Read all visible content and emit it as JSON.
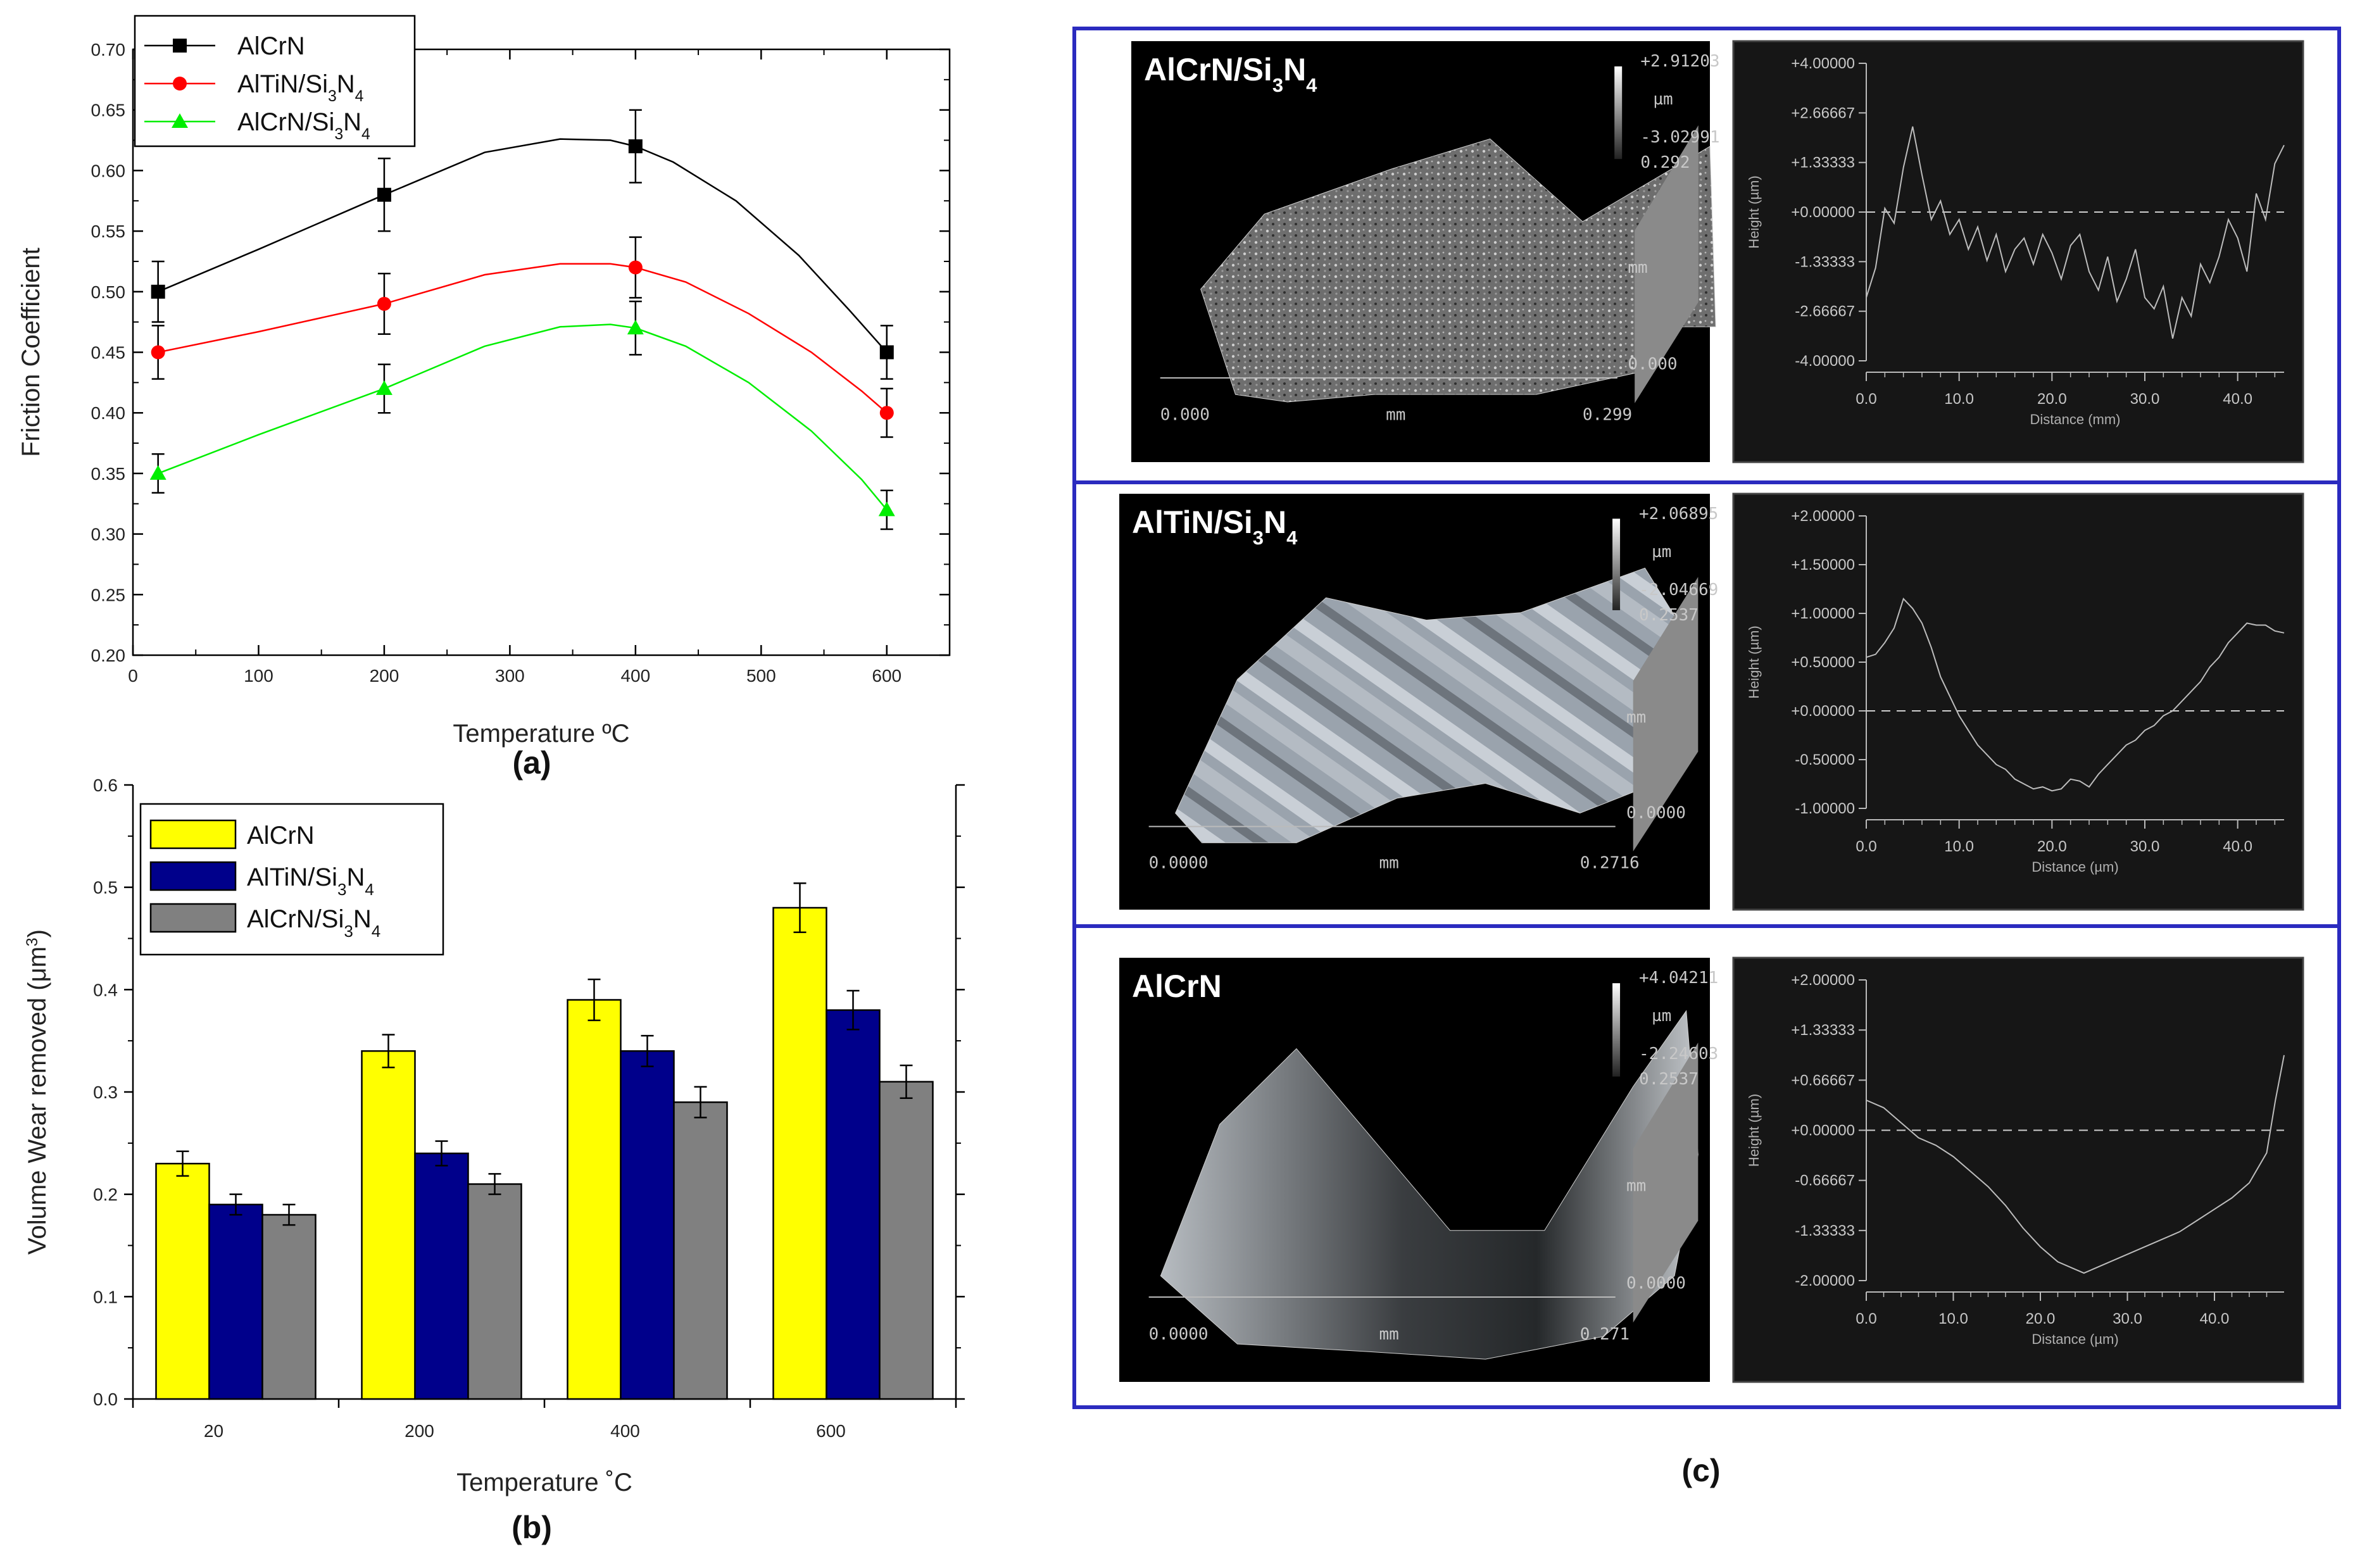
{
  "figure_labels": {
    "a": "(a)",
    "b": "(b)",
    "c": "(c)"
  },
  "colors": {
    "alcrn": "#000000",
    "altin_si3n4": "#ff0000",
    "alcrn_si3n4": "#00ee00",
    "bar_alcrn": "#ffff00",
    "bar_altin_si3n4": "#00008b",
    "bar_alcrn_si3n4": "#808080",
    "frame_blue": "#2b2bbf"
  },
  "chart_data": [
    {
      "id": "a",
      "type": "line",
      "xlabel": "Temperature ºC",
      "ylabel": "Friction Coefficient",
      "xlim": [
        0,
        650
      ],
      "ylim": [
        0.2,
        0.7
      ],
      "xticks": [
        0,
        100,
        200,
        300,
        400,
        500,
        600
      ],
      "yticks": [
        "0.20",
        "0.25",
        "0.30",
        "0.35",
        "0.40",
        "0.45",
        "0.50",
        "0.55",
        "0.60",
        "0.65",
        "0.70"
      ],
      "x": [
        20,
        200,
        400,
        600
      ],
      "legend_position": "top-left",
      "series": [
        {
          "name": "AlCrN",
          "name_parts": [
            "AlCrN",
            "",
            "",
            "",
            ""
          ],
          "color_key": "alcrn",
          "marker": "square",
          "values": [
            0.5,
            0.58,
            0.62,
            0.45
          ],
          "errors": [
            0.025,
            0.03,
            0.03,
            0.022
          ],
          "curve": [
            [
              20,
              0.5
            ],
            [
              100,
              0.535
            ],
            [
              200,
              0.58
            ],
            [
              280,
              0.615
            ],
            [
              340,
              0.626
            ],
            [
              380,
              0.625
            ],
            [
              400,
              0.62
            ],
            [
              430,
              0.607
            ],
            [
              480,
              0.575
            ],
            [
              530,
              0.53
            ],
            [
              570,
              0.485
            ],
            [
              600,
              0.45
            ]
          ]
        },
        {
          "name": "AlTiN/Si3N4",
          "name_parts": [
            "AlTiN/Si",
            "3",
            "N",
            "4",
            ""
          ],
          "color_key": "altin_si3n4",
          "marker": "circle",
          "values": [
            0.45,
            0.49,
            0.52,
            0.4
          ],
          "errors": [
            0.022,
            0.025,
            0.025,
            0.02
          ],
          "curve": [
            [
              20,
              0.45
            ],
            [
              100,
              0.467
            ],
            [
              200,
              0.49
            ],
            [
              280,
              0.514
            ],
            [
              340,
              0.523
            ],
            [
              380,
              0.523
            ],
            [
              400,
              0.52
            ],
            [
              440,
              0.508
            ],
            [
              490,
              0.482
            ],
            [
              540,
              0.45
            ],
            [
              580,
              0.418
            ],
            [
              600,
              0.4
            ]
          ]
        },
        {
          "name": "AlCrN/Si3N4",
          "name_parts": [
            "AlCrN/Si",
            "3",
            "N",
            "4",
            ""
          ],
          "color_key": "alcrn_si3n4",
          "marker": "triangle",
          "values": [
            0.35,
            0.42,
            0.47,
            0.32
          ],
          "errors": [
            0.016,
            0.02,
            0.022,
            0.016
          ],
          "curve": [
            [
              20,
              0.35
            ],
            [
              100,
              0.382
            ],
            [
              200,
              0.42
            ],
            [
              280,
              0.455
            ],
            [
              340,
              0.471
            ],
            [
              380,
              0.473
            ],
            [
              400,
              0.47
            ],
            [
              440,
              0.455
            ],
            [
              490,
              0.425
            ],
            [
              540,
              0.385
            ],
            [
              580,
              0.345
            ],
            [
              600,
              0.32
            ]
          ]
        }
      ]
    },
    {
      "id": "b",
      "type": "bar",
      "xlabel": "Temperature ˚C",
      "ylabel": "Volume Wear removed (μm³)",
      "ylabel_parts": [
        "Volume Wear removed (μm",
        "3",
        ")"
      ],
      "ylim": [
        0.0,
        0.6
      ],
      "yticks": [
        "0.0",
        "0.1",
        "0.2",
        "0.3",
        "0.4",
        "0.5",
        "0.6"
      ],
      "categories": [
        "20",
        "200",
        "400",
        "600"
      ],
      "legend_position": "top-left",
      "series": [
        {
          "name": "AlCrN",
          "name_parts": [
            "AlCrN",
            "",
            "",
            "",
            ""
          ],
          "color_key": "bar_alcrn",
          "values": [
            0.23,
            0.34,
            0.39,
            0.48
          ],
          "errors": [
            0.012,
            0.016,
            0.02,
            0.024
          ]
        },
        {
          "name": "AlTiN/Si3N4",
          "name_parts": [
            "AlTiN/Si",
            "3",
            "N",
            "4",
            ""
          ],
          "color_key": "bar_altin_si3n4",
          "values": [
            0.19,
            0.24,
            0.34,
            0.38
          ],
          "errors": [
            0.01,
            0.012,
            0.015,
            0.019
          ]
        },
        {
          "name": "AlCrN/Si3N4",
          "name_parts": [
            "AlCrN/Si",
            "3",
            "N",
            "4",
            ""
          ],
          "color_key": "bar_alcrn_si3n4",
          "values": [
            0.18,
            0.21,
            0.29,
            0.31
          ],
          "errors": [
            0.01,
            0.01,
            0.015,
            0.016
          ]
        }
      ]
    },
    {
      "id": "c1",
      "type": "line",
      "title": "AlCrN/Si3N4",
      "title_parts": [
        "AlCrN/Si",
        "3",
        "N",
        "4"
      ],
      "afm_labels": {
        "zmax": "+2.91203",
        "zunit": "µm",
        "zmin": "-3.02991",
        "ymax": "0.292",
        "yunit": "mm",
        "yzero": "0.000",
        "x0": "0.000",
        "xunit": "mm",
        "xmax": "0.299"
      },
      "xlabel": "Distance (mm)",
      "ylabel": "Height (µm)",
      "xlim": [
        0,
        45
      ],
      "ylim": [
        -4,
        4
      ],
      "xticks": [
        "0.0",
        "10.0",
        "20.0",
        "30.0",
        "40.0"
      ],
      "yticks": [
        "+4.00000",
        "+2.66667",
        "+1.33333",
        "+0.00000",
        "-1.33333",
        "-2.66667",
        "-4.00000"
      ],
      "x": [
        0,
        1,
        2,
        3,
        4,
        5,
        6,
        7,
        8,
        9,
        10,
        11,
        12,
        13,
        14,
        15,
        16,
        17,
        18,
        19,
        20,
        21,
        22,
        23,
        24,
        25,
        26,
        27,
        28,
        29,
        30,
        31,
        32,
        33,
        34,
        35,
        36,
        37,
        38,
        39,
        40,
        41,
        42,
        43,
        44,
        45
      ],
      "values": [
        -2.3,
        -1.5,
        0.1,
        -0.3,
        1.2,
        2.3,
        1.0,
        -0.2,
        0.3,
        -0.6,
        -0.2,
        -1.0,
        -0.4,
        -1.3,
        -0.6,
        -1.6,
        -1.0,
        -0.7,
        -1.4,
        -0.6,
        -1.1,
        -1.8,
        -0.9,
        -0.6,
        -1.6,
        -2.1,
        -1.2,
        -2.4,
        -1.8,
        -1.0,
        -2.3,
        -2.6,
        -2.0,
        -3.4,
        -2.3,
        -2.8,
        -1.4,
        -1.9,
        -1.2,
        -0.2,
        -0.7,
        -1.6,
        0.5,
        -0.2,
        1.3,
        1.8
      ]
    },
    {
      "id": "c2",
      "type": "line",
      "title": "AlTiN/Si3N4",
      "title_parts": [
        "AlTiN/Si",
        "3",
        "N",
        "4"
      ],
      "afm_labels": {
        "zmax": "+2.06895",
        "zunit": "µm",
        "zmin": "-2.04669",
        "ymax": "0.2537",
        "yunit": "mm",
        "yzero": "0.0000",
        "x0": "0.0000",
        "xunit": "mm",
        "xmax": "0.2716"
      },
      "xlabel": "Distance (µm)",
      "ylabel": "Height (µm)",
      "xlim": [
        0,
        45
      ],
      "ylim": [
        -1,
        2
      ],
      "xticks": [
        "0.0",
        "10.0",
        "20.0",
        "30.0",
        "40.0"
      ],
      "yticks": [
        "+2.00000",
        "+1.50000",
        "+1.00000",
        "+0.50000",
        "+0.00000",
        "-0.50000",
        "-1.00000"
      ],
      "x": [
        0,
        1,
        2,
        3,
        4,
        5,
        6,
        7,
        8,
        9,
        10,
        11,
        12,
        13,
        14,
        15,
        16,
        17,
        18,
        19,
        20,
        21,
        22,
        23,
        24,
        25,
        26,
        27,
        28,
        29,
        30,
        31,
        32,
        33,
        34,
        35,
        36,
        37,
        38,
        39,
        40,
        41,
        42,
        43,
        44,
        45
      ],
      "values": [
        0.55,
        0.58,
        0.7,
        0.85,
        1.15,
        1.05,
        0.9,
        0.65,
        0.35,
        0.15,
        -0.05,
        -0.2,
        -0.35,
        -0.45,
        -0.55,
        -0.6,
        -0.7,
        -0.75,
        -0.8,
        -0.78,
        -0.82,
        -0.8,
        -0.7,
        -0.72,
        -0.78,
        -0.65,
        -0.55,
        -0.45,
        -0.35,
        -0.3,
        -0.2,
        -0.15,
        -0.05,
        0.0,
        0.1,
        0.2,
        0.3,
        0.45,
        0.55,
        0.7,
        0.8,
        0.9,
        0.88,
        0.88,
        0.82,
        0.8
      ]
    },
    {
      "id": "c3",
      "type": "line",
      "title": "AlCrN",
      "title_parts": [
        "AlCrN",
        "",
        "",
        ""
      ],
      "afm_labels": {
        "zmax": "+4.04211",
        "zunit": "µm",
        "zmin": "-2.24603",
        "ymax": "0.2537",
        "yunit": "mm",
        "yzero": "0.0000",
        "x0": "0.0000",
        "xunit": "mm",
        "xmax": "0.271"
      },
      "xlabel": "Distance (µm)",
      "ylabel": "Height (µm)",
      "xlim": [
        0,
        48
      ],
      "ylim": [
        -2,
        2
      ],
      "xticks": [
        "0.0",
        "10.0",
        "20.0",
        "30.0",
        "40.0"
      ],
      "yticks": [
        "+2.00000",
        "+1.33333",
        "+0.66667",
        "+0.00000",
        "-0.66667",
        "-1.33333",
        "-2.00000"
      ],
      "x": [
        0,
        2,
        4,
        6,
        8,
        10,
        12,
        14,
        16,
        18,
        20,
        22,
        24,
        25,
        26,
        28,
        30,
        32,
        34,
        36,
        38,
        40,
        42,
        44,
        46,
        47,
        48
      ],
      "values": [
        0.4,
        0.3,
        0.1,
        -0.1,
        -0.2,
        -0.35,
        -0.55,
        -0.75,
        -1.0,
        -1.3,
        -1.55,
        -1.75,
        -1.85,
        -1.9,
        -1.85,
        -1.75,
        -1.65,
        -1.55,
        -1.45,
        -1.35,
        -1.2,
        -1.05,
        -0.9,
        -0.7,
        -0.3,
        0.4,
        1.0
      ]
    }
  ]
}
